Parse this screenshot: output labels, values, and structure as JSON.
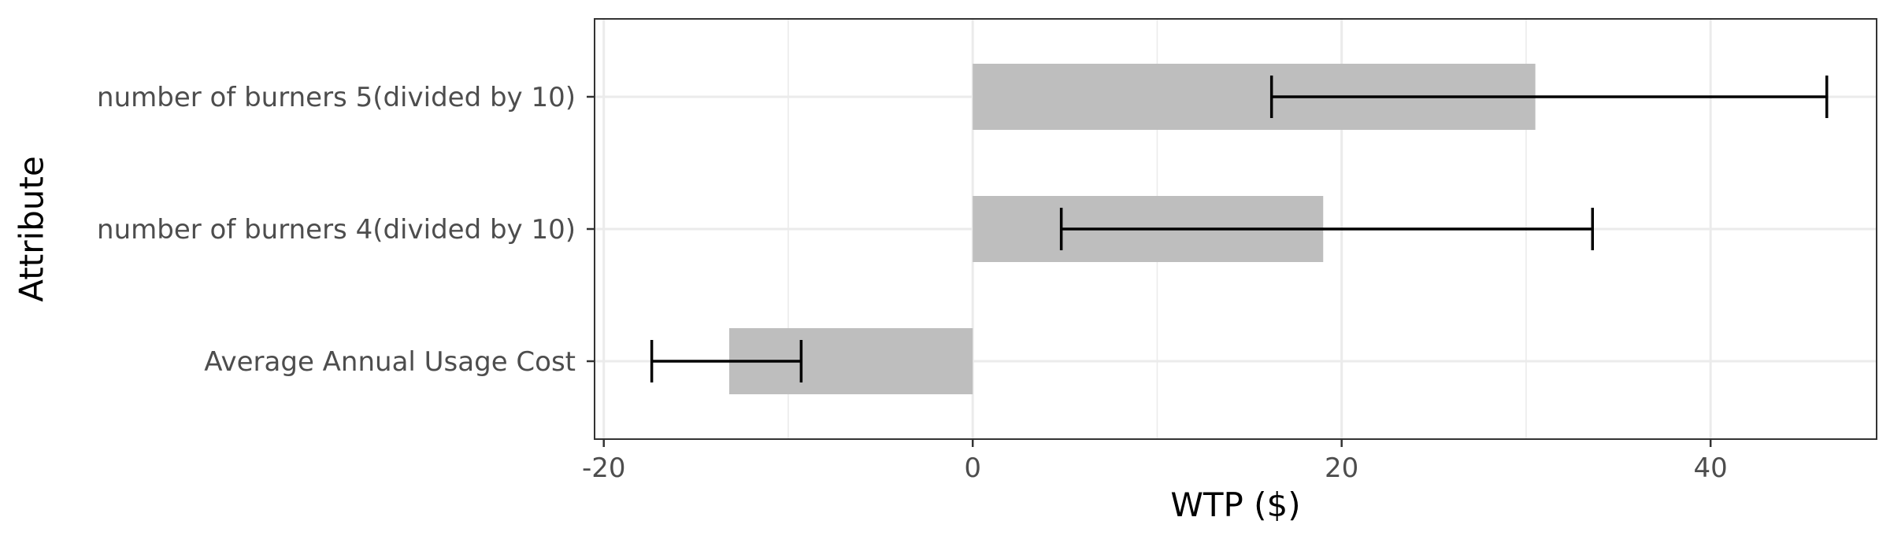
{
  "chart_data": {
    "type": "bar",
    "orientation": "horizontal",
    "title": "",
    "xlabel": "WTP ($)",
    "ylabel": "Attribute",
    "xlim": [
      -20.5,
      49
    ],
    "x_ticks": [
      -20,
      0,
      20,
      40
    ],
    "x_tick_labels": [
      "-20",
      "0",
      "20",
      "40"
    ],
    "grid": true,
    "legend": "none",
    "categories": [
      "number of burners 5(divided by 10)",
      "number of burners 4(divided by 10)",
      "Average Annual Usage Cost"
    ],
    "values": [
      30.5,
      19.0,
      -13.2
    ],
    "error_low": [
      16.2,
      4.8,
      -17.4
    ],
    "error_high": [
      46.3,
      33.6,
      -9.3
    ],
    "bar_color": "#bebebe",
    "error_bar_color": "#000000",
    "grid_color": "#ebebeb",
    "panel_border_color": "#333333"
  }
}
